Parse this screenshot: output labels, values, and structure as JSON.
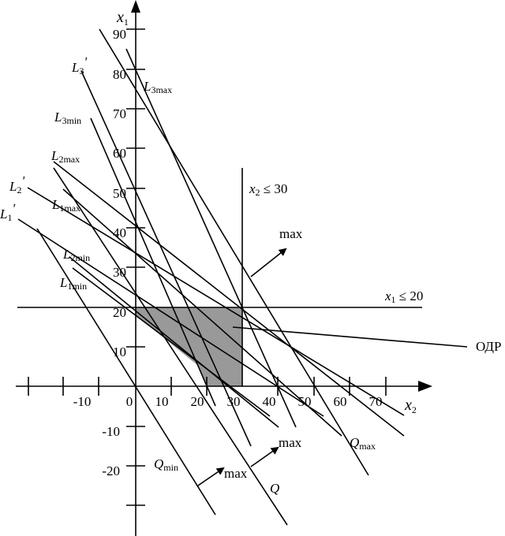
{
  "axes": {
    "vertical": {
      "name": "x",
      "sub": "1"
    },
    "horizontal": {
      "name": "x",
      "sub": "2"
    },
    "vertical_ticks": [
      "90",
      "80",
      "70",
      "60",
      "50",
      "40",
      "30",
      "20",
      "10",
      "-10",
      "-20"
    ],
    "horizontal_ticks": [
      "-10",
      "0",
      "10",
      "20",
      "30",
      "40",
      "50",
      "60",
      "70"
    ]
  },
  "lines": {
    "L3p": {
      "name": "L",
      "sub": "3",
      "suffix": "'"
    },
    "L3max": {
      "name": "L",
      "sub": "3max"
    },
    "L3min": {
      "name": "L",
      "sub": "3min"
    },
    "L2max": {
      "name": "L",
      "sub": "2max"
    },
    "L2p": {
      "name": "L",
      "sub": "2",
      "suffix": "'"
    },
    "L1max": {
      "name": "L",
      "sub": "1max"
    },
    "L1p": {
      "name": "L",
      "sub": "1",
      "suffix": "'"
    },
    "L2min": {
      "name": "L",
      "sub": "2min"
    },
    "L1min": {
      "name": "L",
      "sub": "1min"
    },
    "Qmin": {
      "name": "Q",
      "sub": "min"
    },
    "Qmax": {
      "name": "Q",
      "sub": "max"
    },
    "Q": {
      "name": "Q"
    }
  },
  "constraints": {
    "x2": {
      "var": "x",
      "sub": "2",
      "rel": " ≤ 30"
    },
    "x1": {
      "var": "x",
      "sub": "1",
      "rel": " ≤ 20"
    }
  },
  "arrows": [
    "max",
    "max",
    "max"
  ],
  "feasible_region": {
    "label": "ОДР",
    "fill": "#999999"
  }
}
